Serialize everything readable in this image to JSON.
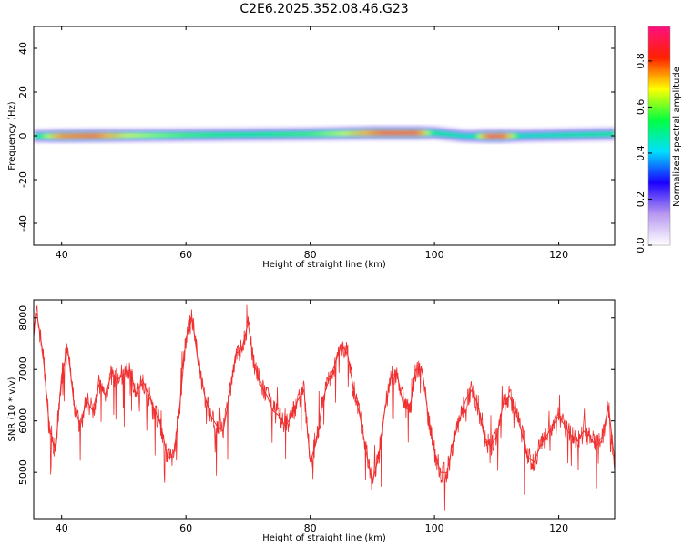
{
  "title": "C2E6.2025.352.08.46.G23",
  "chart_data": [
    {
      "type": "heatmap",
      "xlabel": "Height of straight line (km)",
      "ylabel": "Frequency (Hz)",
      "xlim": [
        35.5,
        129
      ],
      "ylim": [
        -50,
        50
      ],
      "xticks": [
        40,
        60,
        80,
        100,
        120
      ],
      "yticks": [
        -40,
        -20,
        0,
        20,
        40
      ],
      "colorbar": {
        "label": "Normalized spectral amplitude",
        "range": [
          0,
          0.95
        ],
        "ticks": [
          0.0,
          0.2,
          0.4,
          0.6,
          0.8
        ],
        "colormap": [
          "#ffffff",
          "#b898f0",
          "#1a00ff",
          "#00e0ff",
          "#00ff40",
          "#ffff00",
          "#ff2000",
          "#ff1080"
        ]
      },
      "band": {
        "center_freq": [
          {
            "x": 36,
            "f": 0
          },
          {
            "x": 60,
            "f": 0.5
          },
          {
            "x": 80,
            "f": 1
          },
          {
            "x": 90,
            "f": 1.5
          },
          {
            "x": 100,
            "f": 1.5
          },
          {
            "x": 105,
            "f": 0
          },
          {
            "x": 110,
            "f": 0
          },
          {
            "x": 120,
            "f": 0.5
          },
          {
            "x": 129,
            "f": 1
          }
        ],
        "peak_amplitude": [
          {
            "x": 36,
            "a": 0.55
          },
          {
            "x": 40,
            "a": 0.85
          },
          {
            "x": 45,
            "a": 0.9
          },
          {
            "x": 50,
            "a": 0.7
          },
          {
            "x": 60,
            "a": 0.6
          },
          {
            "x": 70,
            "a": 0.55
          },
          {
            "x": 80,
            "a": 0.6
          },
          {
            "x": 86,
            "a": 0.7
          },
          {
            "x": 92,
            "a": 0.92
          },
          {
            "x": 97,
            "a": 0.92
          },
          {
            "x": 100,
            "a": 0.55
          },
          {
            "x": 106,
            "a": 0.5
          },
          {
            "x": 109,
            "a": 0.95
          },
          {
            "x": 111,
            "a": 0.9
          },
          {
            "x": 114,
            "a": 0.5
          },
          {
            "x": 129,
            "a": 0.55
          }
        ]
      }
    },
    {
      "type": "line",
      "xlabel": "Height of straight line (km)",
      "ylabel": "SNR (10 * v/v)",
      "xlim": [
        35.5,
        129
      ],
      "ylim": [
        4100,
        8350
      ],
      "xticks": [
        40,
        60,
        80,
        100,
        120
      ],
      "yticks": [
        5000,
        6000,
        7000,
        8000
      ],
      "color": "#f03030",
      "series": [
        {
          "x": [
            35.5,
            36,
            37,
            38,
            39,
            40,
            41,
            42,
            43,
            44,
            45,
            46,
            47,
            48,
            49,
            50,
            51,
            52,
            53,
            54,
            55,
            56,
            57,
            58,
            59,
            60,
            61,
            62,
            63,
            64,
            65,
            66,
            67,
            68,
            69,
            70,
            71,
            72,
            73,
            74,
            75,
            76,
            77,
            78,
            79,
            80,
            81,
            82,
            83,
            84,
            85,
            86,
            87,
            88,
            89,
            90,
            91,
            92,
            93,
            94,
            95,
            96,
            97,
            98,
            99,
            100,
            101,
            102,
            103,
            104,
            105,
            106,
            107,
            108,
            109,
            110,
            111,
            112,
            113,
            114,
            115,
            116,
            117,
            118,
            119,
            120,
            121,
            122,
            123,
            124,
            125,
            126,
            127,
            128,
            129
          ],
          "y": [
            7800,
            8100,
            7300,
            5900,
            5400,
            6900,
            7400,
            6300,
            5900,
            6400,
            6200,
            6700,
            6500,
            6900,
            6800,
            6900,
            7000,
            6500,
            6800,
            6500,
            6200,
            5900,
            5300,
            5300,
            6300,
            7600,
            8000,
            7100,
            6500,
            6100,
            5900,
            5800,
            6500,
            7300,
            7400,
            7900,
            7100,
            6700,
            6500,
            6200,
            6100,
            5900,
            6100,
            6400,
            6600,
            5200,
            5600,
            6400,
            6800,
            7100,
            7500,
            7300,
            6600,
            6100,
            5400,
            4800,
            5300,
            6200,
            6900,
            6900,
            6300,
            6200,
            7000,
            7000,
            6100,
            5400,
            5000,
            5000,
            5600,
            6000,
            6400,
            6600,
            6300,
            5700,
            5500,
            5700,
            6300,
            6500,
            6200,
            5800,
            5300,
            5200,
            5500,
            5700,
            5900,
            6100,
            5900,
            5700,
            5600,
            5800,
            5700,
            5500,
            5700,
            6300,
            5200
          ]
        }
      ]
    }
  ]
}
